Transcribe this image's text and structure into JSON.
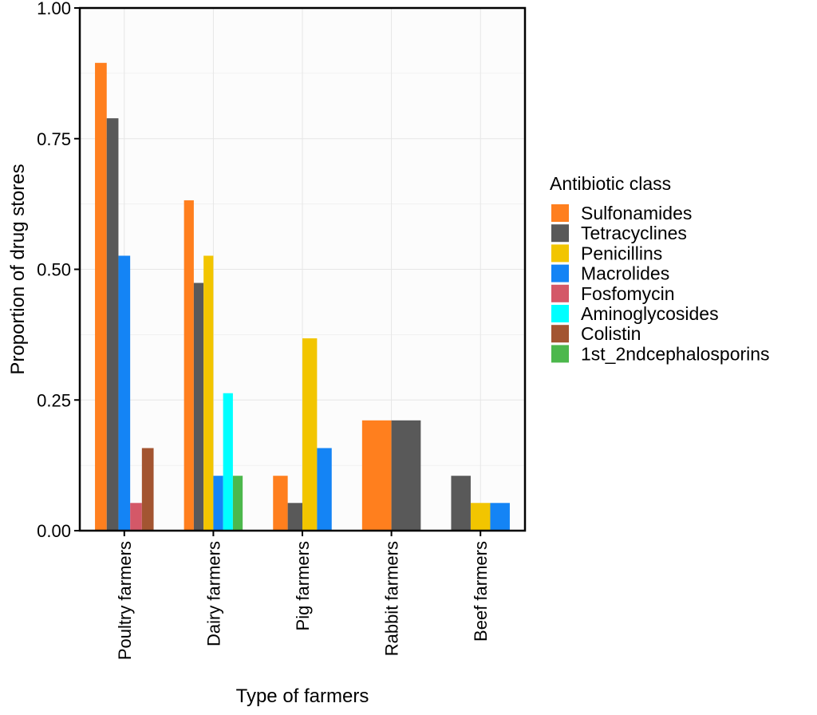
{
  "chart_data": {
    "type": "bar",
    "title": "",
    "xlabel": "Type of farmers",
    "ylabel": "Proportion of drug stores",
    "ylim": [
      0,
      1
    ],
    "yticks": [
      "0.00",
      "0.25",
      "0.50",
      "0.75",
      "1.00"
    ],
    "grid": true,
    "legend_title": "Antibiotic class",
    "legend_position": "right",
    "categories": [
      "Poultry farmers",
      "Dairy farmers",
      "Pig farmers",
      "Rabbit farmers",
      "Beef farmers"
    ],
    "series": [
      {
        "name": "Sulfonamides",
        "color": "#FF7F1E",
        "values": [
          0.895,
          0.632,
          0.105,
          0.211,
          null
        ]
      },
      {
        "name": "Tetracyclines",
        "color": "#595959",
        "values": [
          0.789,
          0.474,
          0.053,
          0.211,
          0.105
        ]
      },
      {
        "name": "Penicillins",
        "color": "#F2C500",
        "values": [
          null,
          0.526,
          0.368,
          null,
          0.053
        ]
      },
      {
        "name": "Macrolides",
        "color": "#1484F5",
        "values": [
          0.526,
          0.105,
          0.158,
          null,
          0.053
        ]
      },
      {
        "name": "Fosfomycin",
        "color": "#D45868",
        "values": [
          0.053,
          null,
          null,
          null,
          null
        ]
      },
      {
        "name": "Aminoglycosides",
        "color": "#00FFFF",
        "values": [
          null,
          0.263,
          null,
          null,
          null
        ]
      },
      {
        "name": "Colistin",
        "color": "#A35531",
        "values": [
          0.158,
          null,
          null,
          null,
          null
        ]
      },
      {
        "name": "1st_2ndcephalosporins",
        "color": "#4CB84C",
        "values": [
          null,
          0.105,
          null,
          null,
          null
        ]
      }
    ]
  }
}
